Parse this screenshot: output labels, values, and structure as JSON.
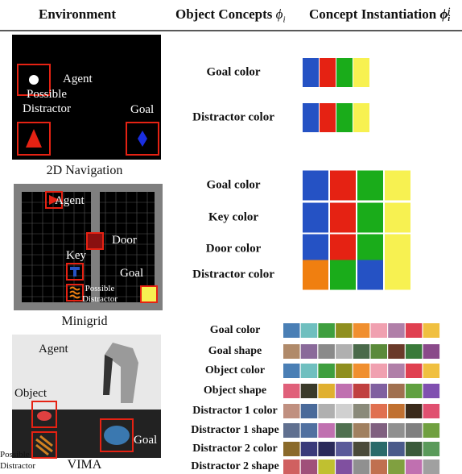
{
  "header": {
    "environment": "Environment",
    "concepts": "Object Concepts",
    "concepts_symbol": "ϕ",
    "concepts_sub": "i",
    "instantiation": "Concept Instantiation",
    "instantiation_symbol": "ϕ",
    "instantiation_sub": "i",
    "instantiation_sup": "j"
  },
  "rows": [
    {
      "environment": "2D Navigation",
      "image_labels": [
        "Agent",
        "Possible Distractor",
        "Goal"
      ],
      "concepts": [
        {
          "name": "Goal color",
          "swatches": [
            "#2552c4",
            "#e52213",
            "#1aac1a",
            "#f7f151"
          ]
        },
        {
          "name": "Distractor color",
          "swatches": [
            "#2552c4",
            "#e52213",
            "#1aac1a",
            "#f7f151"
          ]
        }
      ]
    },
    {
      "environment": "Minigrid",
      "image_labels": [
        "Agent",
        "Door",
        "Key",
        "Goal",
        "Possible Distractor"
      ],
      "concepts": [
        {
          "name": "Goal color",
          "swatches": [
            "#2552c4",
            "#e52213",
            "#1aac1a",
            "#f7f151"
          ]
        },
        {
          "name": "Key color",
          "swatches": [
            "#2552c4",
            "#e52213",
            "#1aac1a",
            "#f7f151"
          ]
        },
        {
          "name": "Door color",
          "swatches": [
            "#2552c4",
            "#e52213",
            "#1aac1a",
            "#f7f151"
          ]
        },
        {
          "name": "Distractor color",
          "swatches": [
            "#f07f10",
            "#1aac1a",
            "#2552c4",
            "#f7f151"
          ]
        }
      ]
    },
    {
      "environment": "VIMA",
      "image_labels": [
        "Agent",
        "Object",
        "Goal",
        "Possible Distractor"
      ],
      "concepts": [
        {
          "name": "Goal color",
          "swatches": [
            "#4a7fb5",
            "#6fbfbf",
            "#3f9f3f",
            "#8f8f1f",
            "#f08f2f",
            "#f0a0b0",
            "#b07fa8",
            "#e04050",
            "#f0c040"
          ]
        },
        {
          "name": "Goal shape",
          "swatches": [
            "#b08a6a",
            "#8a6a9a",
            "#8a8a8a",
            "#b0b0b0",
            "#4a6a4a",
            "#5a8a3a",
            "#6a3a2a",
            "#3a7a3a",
            "#8a4a8a"
          ]
        },
        {
          "name": "Object color",
          "swatches": [
            "#4a7fb5",
            "#6fbfbf",
            "#3f9f3f",
            "#8f8f1f",
            "#f08f2f",
            "#f0a0b0",
            "#b07fa8",
            "#e04050",
            "#f0c040"
          ]
        },
        {
          "name": "Object shape",
          "swatches": [
            "#e0607a",
            "#3a3a2a",
            "#e0b030",
            "#c070b0",
            "#c04040",
            "#8060a0",
            "#a07050",
            "#60a040",
            "#8050b0"
          ]
        },
        {
          "name": "Distractor 1 color",
          "swatches": [
            "#c09080",
            "#4a6a9a",
            "#b0b0b0",
            "#d0d0d0",
            "#8a8a7a",
            "#e07050",
            "#c07030",
            "#3a2a1a",
            "#e05070"
          ]
        },
        {
          "name": "Distractor 1 shape",
          "swatches": [
            "#607090",
            "#5070a0",
            "#c070b0",
            "#507050",
            "#a08060",
            "#806080",
            "#909090",
            "#808080",
            "#70a040"
          ]
        },
        {
          "name": "Distractor 2 color",
          "swatches": [
            "#8a6a2a",
            "#3a3a7a",
            "#2a2a5a",
            "#5a5a9a",
            "#4a4a3a",
            "#2a6a6a",
            "#4a5a8a",
            "#3a5a3a",
            "#5a9a5a"
          ]
        },
        {
          "name": "Distractor 2 shape",
          "swatches": [
            "#d06060",
            "#a0507a",
            "#c0c030",
            "#8050a0",
            "#909090",
            "#c07050",
            "#80a040",
            "#c070b0",
            "#a0a0a0"
          ]
        }
      ]
    }
  ]
}
